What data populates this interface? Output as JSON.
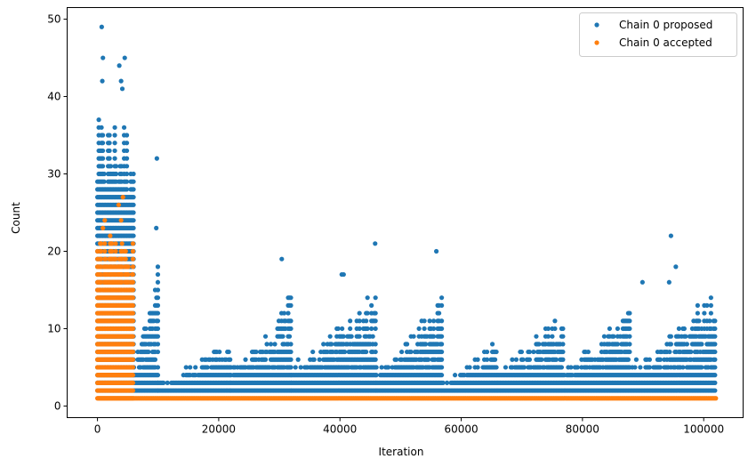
{
  "chart_data": {
    "type": "scatter",
    "title": "",
    "xlabel": "Iteration",
    "ylabel": "Count",
    "xlim": [
      -5000,
      106500
    ],
    "ylim": [
      -1.5,
      51.5
    ],
    "xticks": [
      0,
      20000,
      40000,
      60000,
      80000,
      100000
    ],
    "xtick_labels": [
      "0",
      "20000",
      "40000",
      "60000",
      "80000",
      "100000"
    ],
    "yticks": [
      0,
      10,
      20,
      30,
      40,
      50
    ],
    "ytick_labels": [
      "0",
      "10",
      "20",
      "30",
      "40",
      "50"
    ],
    "grid": false,
    "legend_position": "top-right",
    "series": [
      {
        "name": "Chain 0 proposed",
        "color": "#1f77b4",
        "x_range": [
          0,
          102000
        ],
        "profile": [
          {
            "x0": 0,
            "x1": 6000,
            "max_count": 37
          },
          {
            "x0": 6000,
            "x1": 10000,
            "max_count": 19
          },
          {
            "x0": 10000,
            "x1": 22000,
            "max_count": 9
          },
          {
            "x0": 22000,
            "x1": 32000,
            "max_count": 15
          },
          {
            "x0": 32000,
            "x1": 46000,
            "max_count": 16
          },
          {
            "x0": 46000,
            "x1": 57000,
            "max_count": 15
          },
          {
            "x0": 57000,
            "x1": 66000,
            "max_count": 9
          },
          {
            "x0": 66000,
            "x1": 77000,
            "max_count": 14
          },
          {
            "x0": 77000,
            "x1": 88000,
            "max_count": 14
          },
          {
            "x0": 88000,
            "x1": 102000,
            "max_count": 16
          }
        ],
        "outliers": [
          {
            "x": 700,
            "y": 49
          },
          {
            "x": 900,
            "y": 45
          },
          {
            "x": 4500,
            "y": 45
          },
          {
            "x": 3600,
            "y": 44
          },
          {
            "x": 800,
            "y": 42
          },
          {
            "x": 3900,
            "y": 42
          },
          {
            "x": 4100,
            "y": 41
          },
          {
            "x": 9800,
            "y": 32
          },
          {
            "x": 9700,
            "y": 23
          },
          {
            "x": 45800,
            "y": 21
          },
          {
            "x": 55900,
            "y": 20
          },
          {
            "x": 30400,
            "y": 19
          },
          {
            "x": 94600,
            "y": 22
          },
          {
            "x": 95400,
            "y": 18
          },
          {
            "x": 40300,
            "y": 17
          },
          {
            "x": 40600,
            "y": 17
          },
          {
            "x": 89900,
            "y": 16
          },
          {
            "x": 94300,
            "y": 16
          }
        ]
      },
      {
        "name": "Chain 0 accepted",
        "color": "#ff7f0e",
        "x_range": [
          0,
          102000
        ],
        "profile": [
          {
            "x0": 0,
            "x1": 6000,
            "max_count": 22
          },
          {
            "x0": 6000,
            "x1": 102000,
            "max_count": 1
          }
        ],
        "outliers": [
          {
            "x": 4200,
            "y": 27
          },
          {
            "x": 3500,
            "y": 26
          },
          {
            "x": 1200,
            "y": 24
          },
          {
            "x": 3900,
            "y": 24
          },
          {
            "x": 900,
            "y": 23
          }
        ]
      }
    ]
  }
}
